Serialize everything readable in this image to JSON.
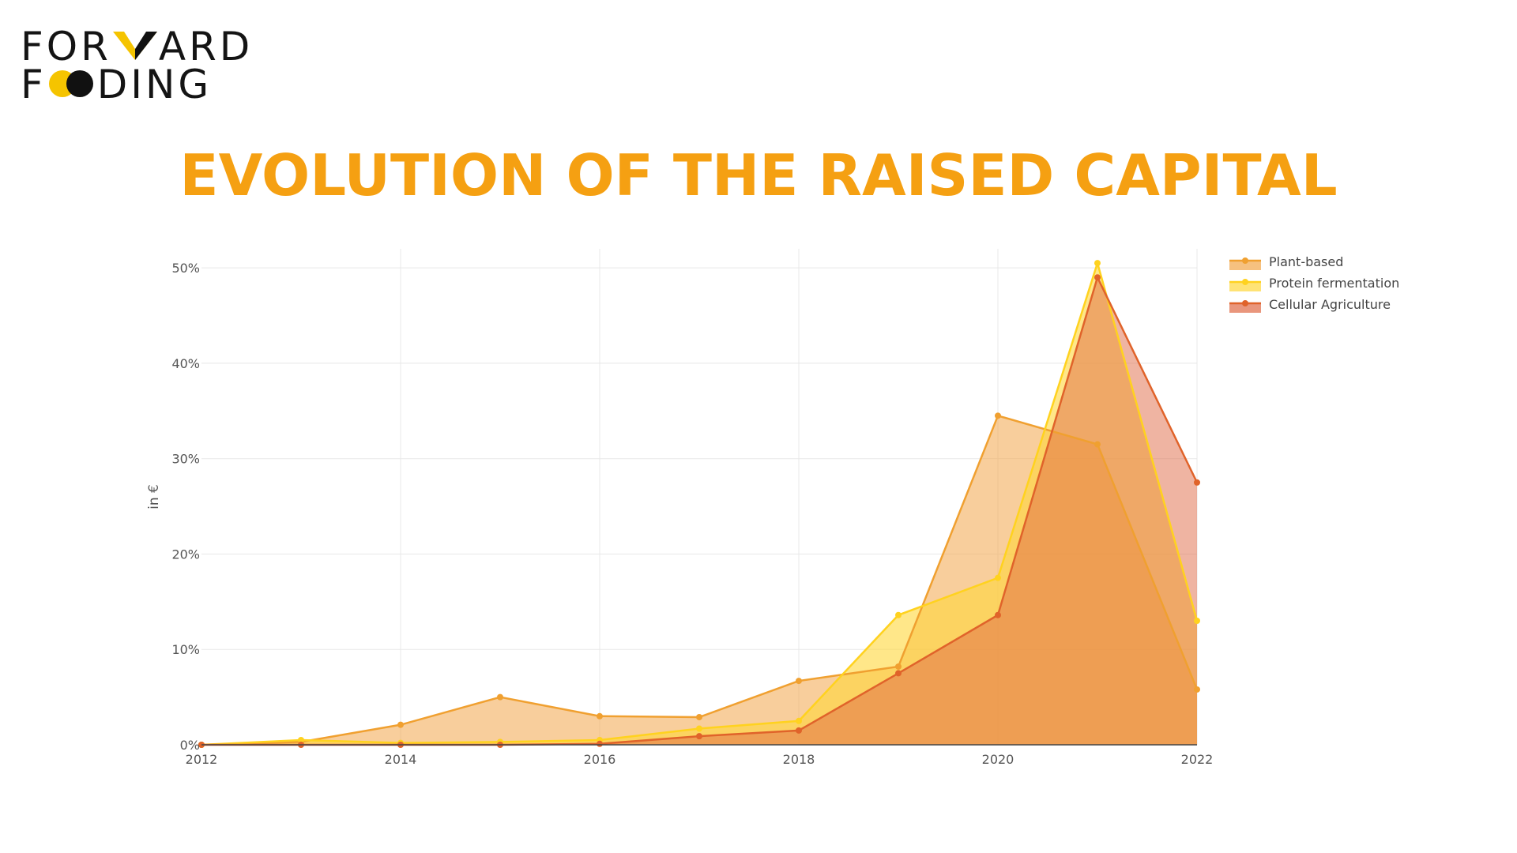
{
  "logo": {
    "line1_left": "FOR",
    "line1_right": "ARD",
    "line2_left": "F",
    "line2_right": "DING",
    "chevron_icon": "chevron-down-icon",
    "circles_icon": "overlapping-circles-icon",
    "colors": {
      "yellow": "#f5c400",
      "black": "#111111",
      "white": "#ffffff"
    }
  },
  "title": "EVOLUTION OF THE RAISED CAPITAL",
  "chart_data": {
    "type": "area",
    "xlabel": "",
    "ylabel": "in €",
    "xlim": [
      2012,
      2022
    ],
    "ylim": [
      0,
      52
    ],
    "x_ticks": [
      2012,
      2014,
      2016,
      2018,
      2020,
      2022
    ],
    "y_ticks": [
      0,
      10,
      20,
      30,
      40,
      50
    ],
    "y_tick_labels": [
      "0%",
      "10%",
      "20%",
      "30%",
      "40%",
      "50%"
    ],
    "grid": true,
    "legend_position": "top-right",
    "x": [
      2012,
      2013,
      2014,
      2015,
      2016,
      2017,
      2018,
      2019,
      2020,
      2021,
      2022
    ],
    "series": [
      {
        "name": "Plant-based",
        "color": "#f0a030",
        "fill": "#f2a64a",
        "values": [
          0,
          0.3,
          2.1,
          5.0,
          3.0,
          2.9,
          6.7,
          8.2,
          34.5,
          31.5,
          5.8
        ]
      },
      {
        "name": "Protein fermentation",
        "color": "#ffd21f",
        "fill": "#ffd73a",
        "values": [
          0,
          0.5,
          0.2,
          0.3,
          0.5,
          1.7,
          2.5,
          13.6,
          17.5,
          50.5,
          13.0
        ]
      },
      {
        "name": "Cellular Agriculture",
        "color": "#e0632a",
        "fill": "#e06a45",
        "values": [
          0,
          0,
          0,
          0,
          0.1,
          0.9,
          1.5,
          7.5,
          13.6,
          49.0,
          27.5
        ]
      }
    ]
  }
}
